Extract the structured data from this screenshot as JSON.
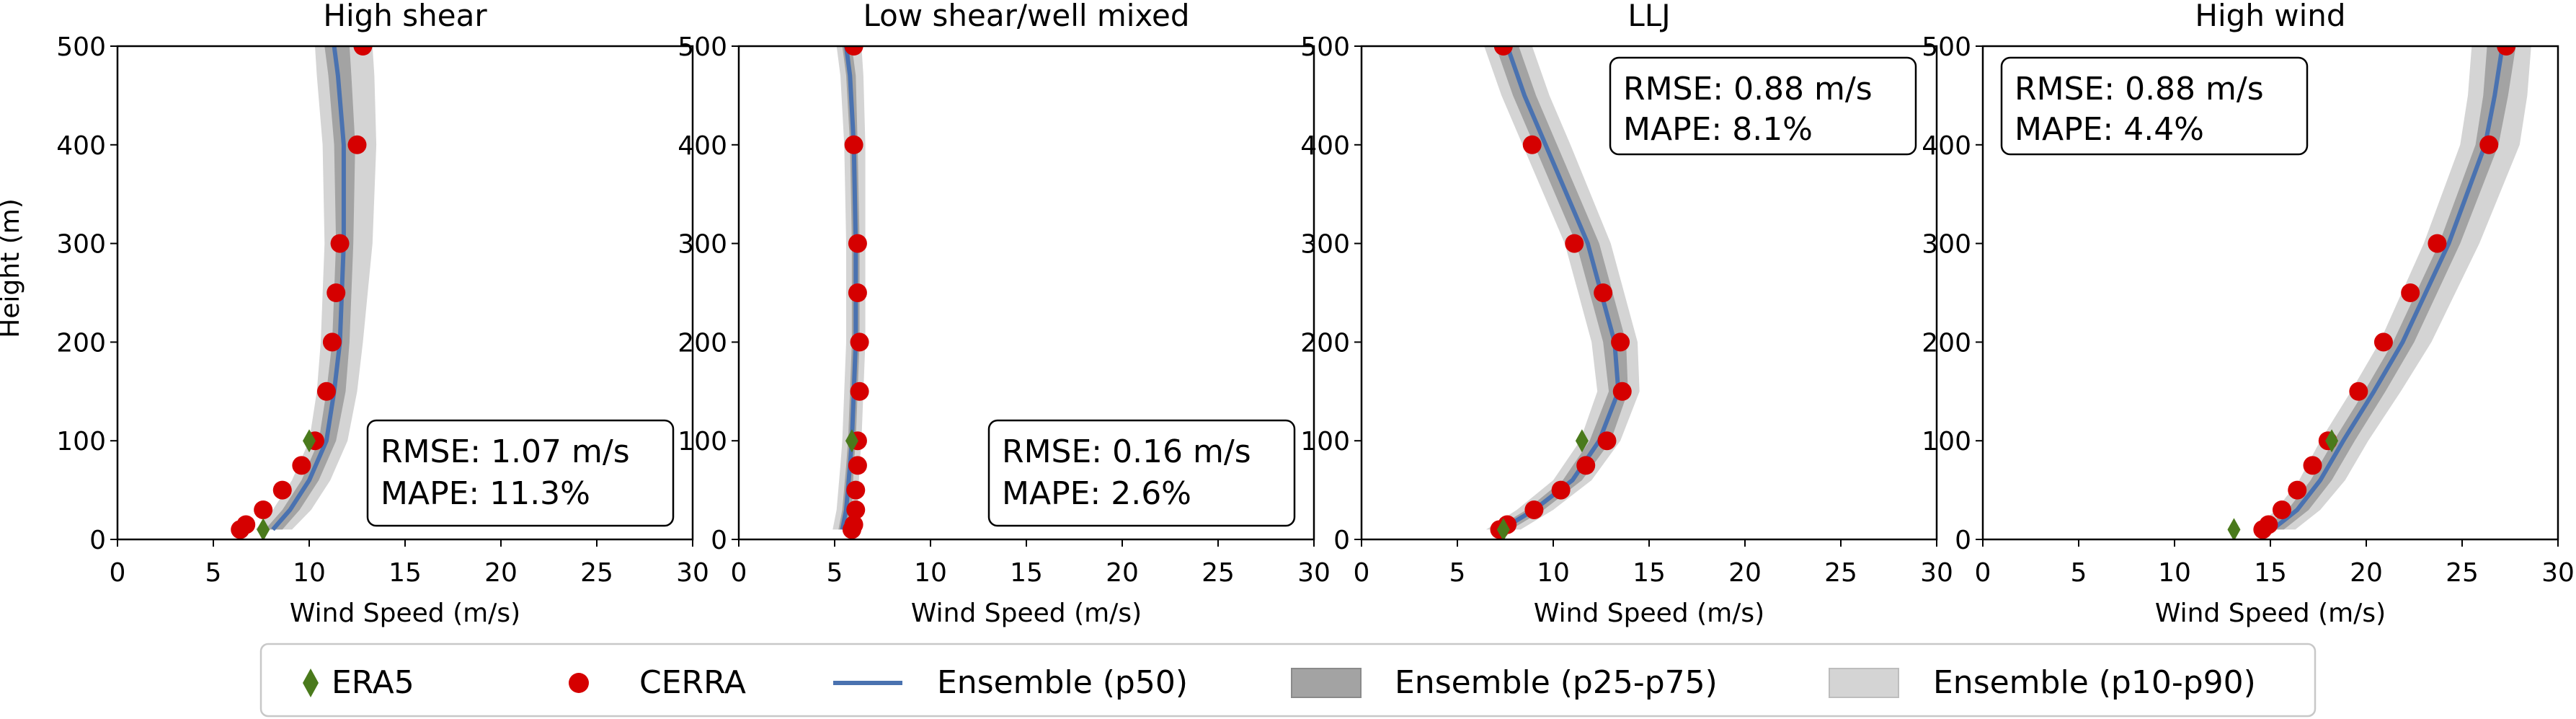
{
  "figure": {
    "ylabel": "Height (m)",
    "xlabel": "Wind Speed (m/s)",
    "xticks": [
      "0",
      "5",
      "10",
      "15",
      "20",
      "25",
      "30"
    ],
    "yticks": [
      "0",
      "100",
      "200",
      "300",
      "400",
      "500"
    ],
    "legend": {
      "items": [
        {
          "label": "ERA5",
          "kind": "diamond",
          "color": "#4a7a1c"
        },
        {
          "label": "CERRA",
          "kind": "circle",
          "color": "#d50000"
        },
        {
          "label": "Ensemble (p50)",
          "kind": "line",
          "color": "#4a72b0"
        },
        {
          "label": "Ensemble (p25-p75)",
          "kind": "dark-band",
          "color": "#999999"
        },
        {
          "label": "Ensemble (p10-p90)",
          "kind": "light-band",
          "color": "#d4d4d4"
        }
      ]
    }
  },
  "chart_data": [
    {
      "type": "line",
      "title": "High shear",
      "xlabel": "Wind Speed (m/s)",
      "ylabel": "Height (m)",
      "xlim": [
        0,
        30
      ],
      "ylim": [
        0,
        500
      ],
      "stats": {
        "rmse": "RMSE: 1.07 m/s",
        "mape": "MAPE: 11.3%"
      },
      "era5": [
        {
          "x": 7.6,
          "y": 10
        },
        {
          "x": 10.0,
          "y": 100
        }
      ],
      "cerra": [
        {
          "x": 6.4,
          "y": 10
        },
        {
          "x": 6.7,
          "y": 15
        },
        {
          "x": 7.6,
          "y": 30
        },
        {
          "x": 8.6,
          "y": 50
        },
        {
          "x": 9.6,
          "y": 75
        },
        {
          "x": 10.3,
          "y": 100
        },
        {
          "x": 10.9,
          "y": 150
        },
        {
          "x": 11.2,
          "y": 200
        },
        {
          "x": 11.4,
          "y": 250
        },
        {
          "x": 11.6,
          "y": 300
        },
        {
          "x": 12.5,
          "y": 400
        },
        {
          "x": 12.8,
          "y": 500
        }
      ],
      "p50": [
        {
          "x": 8.1,
          "y": 10
        },
        {
          "x": 9.0,
          "y": 30
        },
        {
          "x": 10.0,
          "y": 60
        },
        {
          "x": 10.9,
          "y": 100
        },
        {
          "x": 11.3,
          "y": 150
        },
        {
          "x": 11.6,
          "y": 200
        },
        {
          "x": 11.8,
          "y": 300
        },
        {
          "x": 11.8,
          "y": 400
        },
        {
          "x": 11.5,
          "y": 470
        },
        {
          "x": 11.3,
          "y": 500
        }
      ],
      "p25": [
        7.7,
        8.6,
        9.6,
        10.5,
        10.9,
        11.2,
        11.4,
        11.3,
        11.0,
        10.8
      ],
      "p75": [
        8.6,
        9.5,
        10.5,
        11.4,
        11.9,
        12.1,
        12.3,
        12.4,
        12.2,
        12.1
      ],
      "p10": [
        7.2,
        8.1,
        9.1,
        10.0,
        10.4,
        10.6,
        10.8,
        10.7,
        10.4,
        10.3
      ],
      "p90": [
        9.1,
        10.1,
        11.1,
        12.0,
        12.5,
        12.8,
        13.3,
        13.5,
        13.4,
        13.3
      ]
    },
    {
      "type": "line",
      "title": "Low shear/well mixed",
      "xlabel": "Wind Speed (m/s)",
      "ylabel": "Height (m)",
      "xlim": [
        0,
        30
      ],
      "ylim": [
        0,
        500
      ],
      "stats": {
        "rmse": "RMSE: 0.16 m/s",
        "mape": "MAPE: 2.6%"
      },
      "era5": [
        {
          "x": 5.9,
          "y": 100
        }
      ],
      "cerra": [
        {
          "x": 5.9,
          "y": 10
        },
        {
          "x": 6.0,
          "y": 15
        },
        {
          "x": 6.1,
          "y": 30
        },
        {
          "x": 6.1,
          "y": 50
        },
        {
          "x": 6.2,
          "y": 75
        },
        {
          "x": 6.2,
          "y": 100
        },
        {
          "x": 6.3,
          "y": 150
        },
        {
          "x": 6.3,
          "y": 200
        },
        {
          "x": 6.2,
          "y": 250
        },
        {
          "x": 6.2,
          "y": 300
        },
        {
          "x": 6.0,
          "y": 400
        },
        {
          "x": 6.0,
          "y": 500
        }
      ],
      "p50": [
        {
          "x": 5.4,
          "y": 10
        },
        {
          "x": 5.6,
          "y": 30
        },
        {
          "x": 5.8,
          "y": 75
        },
        {
          "x": 5.9,
          "y": 100
        },
        {
          "x": 6.0,
          "y": 150
        },
        {
          "x": 6.1,
          "y": 200
        },
        {
          "x": 6.1,
          "y": 300
        },
        {
          "x": 6.0,
          "y": 400
        },
        {
          "x": 5.8,
          "y": 470
        },
        {
          "x": 5.6,
          "y": 500
        }
      ],
      "p25": [
        5.2,
        5.4,
        5.6,
        5.7,
        5.8,
        5.9,
        5.9,
        5.8,
        5.6,
        5.4
      ],
      "p75": [
        5.7,
        5.9,
        6.0,
        6.1,
        6.2,
        6.3,
        6.3,
        6.2,
        6.1,
        5.9
      ],
      "p10": [
        4.9,
        5.1,
        5.3,
        5.4,
        5.5,
        5.6,
        5.6,
        5.5,
        5.3,
        5.1
      ],
      "p90": [
        6.0,
        6.2,
        6.3,
        6.4,
        6.5,
        6.6,
        6.6,
        6.6,
        6.5,
        6.4
      ]
    },
    {
      "type": "line",
      "title": "LLJ",
      "xlabel": "Wind Speed (m/s)",
      "ylabel": "Height (m)",
      "xlim": [
        0,
        30
      ],
      "ylim": [
        0,
        500
      ],
      "stats": {
        "rmse": "RMSE: 0.88 m/s",
        "mape": "MAPE: 8.1%"
      },
      "era5": [
        {
          "x": 7.4,
          "y": 10
        },
        {
          "x": 11.5,
          "y": 100
        }
      ],
      "cerra": [
        {
          "x": 7.2,
          "y": 10
        },
        {
          "x": 7.6,
          "y": 15
        },
        {
          "x": 9.0,
          "y": 30
        },
        {
          "x": 10.4,
          "y": 50
        },
        {
          "x": 11.7,
          "y": 75
        },
        {
          "x": 12.8,
          "y": 100
        },
        {
          "x": 13.6,
          "y": 150
        },
        {
          "x": 13.5,
          "y": 200
        },
        {
          "x": 12.6,
          "y": 250
        },
        {
          "x": 11.1,
          "y": 300
        },
        {
          "x": 8.9,
          "y": 400
        },
        {
          "x": 7.4,
          "y": 500
        }
      ],
      "p50": [
        {
          "x": 7.3,
          "y": 10
        },
        {
          "x": 9.0,
          "y": 30
        },
        {
          "x": 11.0,
          "y": 60
        },
        {
          "x": 12.4,
          "y": 100
        },
        {
          "x": 13.4,
          "y": 150
        },
        {
          "x": 13.2,
          "y": 200
        },
        {
          "x": 11.8,
          "y": 300
        },
        {
          "x": 9.6,
          "y": 400
        },
        {
          "x": 8.5,
          "y": 450
        },
        {
          "x": 7.6,
          "y": 500
        }
      ],
      "p25": [
        6.9,
        8.6,
        10.5,
        11.9,
        12.9,
        12.6,
        11.2,
        9.0,
        7.9,
        7.0
      ],
      "p75": [
        7.8,
        9.5,
        11.5,
        13.0,
        13.9,
        13.8,
        12.4,
        10.2,
        9.1,
        8.2
      ],
      "p10": [
        6.5,
        8.1,
        10.0,
        11.4,
        12.3,
        12.0,
        10.6,
        8.4,
        7.3,
        6.4
      ],
      "p90": [
        8.3,
        10.0,
        12.0,
        13.5,
        14.5,
        14.4,
        13.0,
        10.9,
        9.8,
        8.9
      ]
    },
    {
      "type": "line",
      "title": "High wind",
      "xlabel": "Wind Speed (m/s)",
      "ylabel": "Height (m)",
      "xlim": [
        0,
        30
      ],
      "ylim": [
        0,
        500
      ],
      "stats": {
        "rmse": "RMSE: 0.88 m/s",
        "mape": "MAPE: 4.4%"
      },
      "era5": [
        {
          "x": 13.1,
          "y": 10
        },
        {
          "x": 18.2,
          "y": 100
        }
      ],
      "cerra": [
        {
          "x": 14.6,
          "y": 10
        },
        {
          "x": 14.9,
          "y": 15
        },
        {
          "x": 15.6,
          "y": 30
        },
        {
          "x": 16.4,
          "y": 50
        },
        {
          "x": 17.2,
          "y": 75
        },
        {
          "x": 18.0,
          "y": 100
        },
        {
          "x": 19.6,
          "y": 150
        },
        {
          "x": 20.9,
          "y": 200
        },
        {
          "x": 22.3,
          "y": 250
        },
        {
          "x": 23.7,
          "y": 300
        },
        {
          "x": 26.4,
          "y": 400
        },
        {
          "x": 27.3,
          "y": 500
        }
      ],
      "p50": [
        {
          "x": 15.1,
          "y": 10
        },
        {
          "x": 16.4,
          "y": 30
        },
        {
          "x": 17.6,
          "y": 60
        },
        {
          "x": 18.8,
          "y": 100
        },
        {
          "x": 20.4,
          "y": 150
        },
        {
          "x": 21.9,
          "y": 200
        },
        {
          "x": 24.3,
          "y": 300
        },
        {
          "x": 26.2,
          "y": 400
        },
        {
          "x": 26.7,
          "y": 450
        },
        {
          "x": 27.1,
          "y": 500
        }
      ],
      "p25": [
        14.6,
        15.9,
        17.1,
        18.3,
        19.9,
        21.4,
        23.8,
        25.7,
        26.1,
        26.3
      ],
      "p75": [
        15.7,
        17.0,
        18.2,
        19.4,
        21.0,
        22.5,
        24.9,
        26.9,
        27.4,
        27.8
      ],
      "p10": [
        14.1,
        15.3,
        16.5,
        17.6,
        19.2,
        20.7,
        23.0,
        24.9,
        25.3,
        25.5
      ],
      "p90": [
        16.3,
        17.6,
        18.9,
        20.1,
        21.8,
        23.4,
        25.9,
        28.0,
        28.4,
        28.6
      ]
    }
  ]
}
